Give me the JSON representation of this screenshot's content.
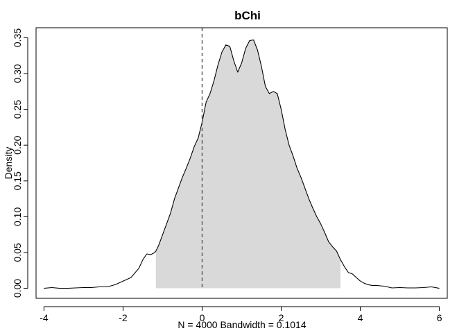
{
  "chart_data": {
    "type": "area",
    "title": "bChi",
    "xlabel": "N = 4000   Bandwidth = 0.1014",
    "ylabel": "Density",
    "xlim": [
      -4.2,
      6.2
    ],
    "ylim": [
      -0.014,
      0.364
    ],
    "x_ticks": [
      -4,
      -2,
      0,
      2,
      4,
      6
    ],
    "y_ticks": [
      0.0,
      0.05,
      0.1,
      0.15,
      0.2,
      0.25,
      0.3,
      0.35
    ],
    "y_tick_labels": [
      "0.00",
      "0.05",
      "0.10",
      "0.15",
      "0.20",
      "0.25",
      "0.30",
      "0.35"
    ],
    "reference_line": {
      "x": 0,
      "style": "dashed"
    },
    "shaded_interval": {
      "from": -1.17,
      "to": 3.5,
      "color": "#d9d9d9"
    },
    "grid": false,
    "series": [
      {
        "x": [
          -4.0,
          -3.8,
          -3.6,
          -3.4,
          -3.2,
          -3.0,
          -2.8,
          -2.6,
          -2.4,
          -2.2,
          -2.0,
          -1.8,
          -1.6,
          -1.5,
          -1.4,
          -1.3,
          -1.2,
          -1.17,
          -1.1,
          -1.0,
          -0.9,
          -0.8,
          -0.7,
          -0.6,
          -0.5,
          -0.4,
          -0.3,
          -0.2,
          -0.1,
          0.0,
          0.1,
          0.2,
          0.3,
          0.4,
          0.5,
          0.6,
          0.7,
          0.8,
          0.9,
          1.0,
          1.1,
          1.2,
          1.3,
          1.4,
          1.5,
          1.6,
          1.7,
          1.8,
          1.9,
          2.0,
          2.1,
          2.2,
          2.3,
          2.4,
          2.5,
          2.6,
          2.7,
          2.8,
          2.9,
          3.0,
          3.1,
          3.2,
          3.3,
          3.4,
          3.5,
          3.6,
          3.7,
          3.8,
          3.9,
          4.0,
          4.1,
          4.2,
          4.3,
          4.4,
          4.6,
          4.8,
          5.0,
          5.2,
          5.4,
          5.6,
          5.8,
          6.0
        ],
        "y": [
          0.0,
          0.001,
          0.0,
          0.0,
          0.0005,
          0.001,
          0.001,
          0.002,
          0.002,
          0.005,
          0.01,
          0.015,
          0.028,
          0.04,
          0.048,
          0.047,
          0.05,
          0.052,
          0.06,
          0.075,
          0.09,
          0.105,
          0.125,
          0.14,
          0.155,
          0.168,
          0.182,
          0.198,
          0.21,
          0.232,
          0.26,
          0.272,
          0.29,
          0.312,
          0.33,
          0.34,
          0.338,
          0.318,
          0.302,
          0.315,
          0.335,
          0.346,
          0.347,
          0.333,
          0.31,
          0.282,
          0.272,
          0.275,
          0.272,
          0.25,
          0.222,
          0.2,
          0.185,
          0.168,
          0.155,
          0.14,
          0.125,
          0.112,
          0.1,
          0.09,
          0.078,
          0.065,
          0.058,
          0.052,
          0.04,
          0.03,
          0.022,
          0.02,
          0.015,
          0.01,
          0.007,
          0.005,
          0.004,
          0.004,
          0.003,
          0.0005,
          0.001,
          0.0005,
          0.0005,
          0.001,
          0.002,
          0.0
        ]
      }
    ]
  }
}
